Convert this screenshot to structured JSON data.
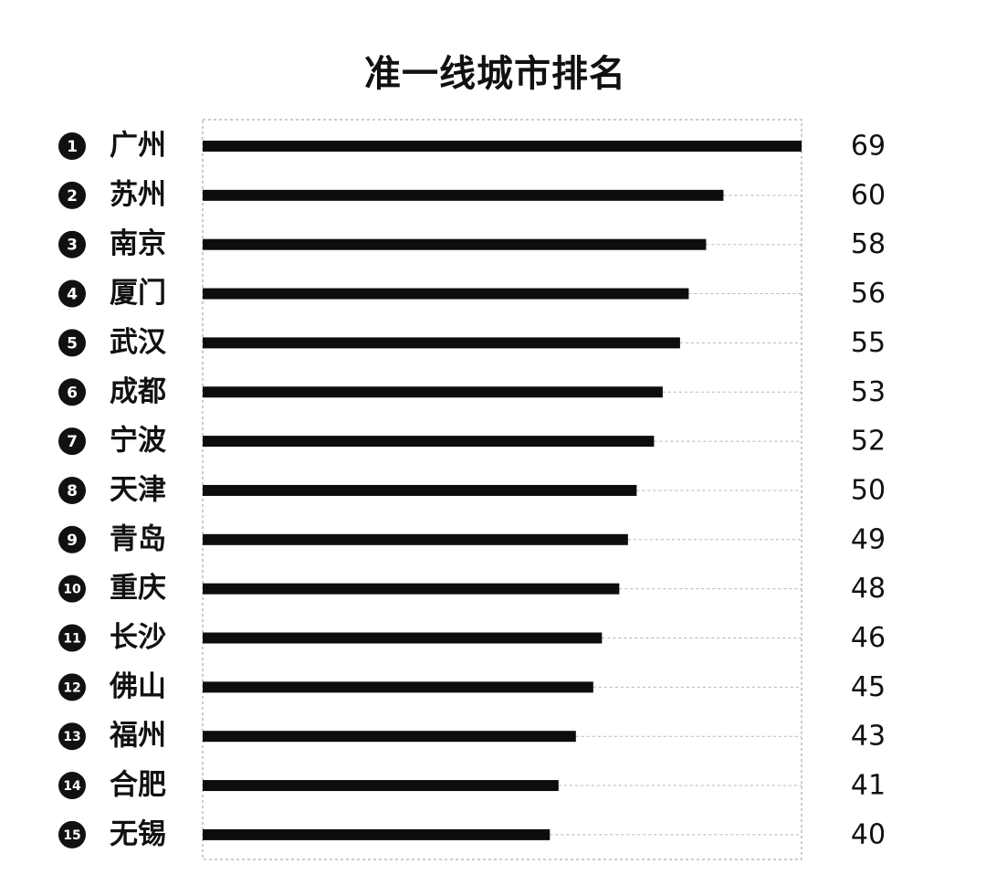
{
  "chart_data": {
    "type": "bar",
    "orientation": "horizontal",
    "title": "准一线城市排名",
    "xlabel": "",
    "ylabel": "",
    "xlim": [
      0,
      69
    ],
    "grid": false,
    "ranks": [
      "1",
      "2",
      "3",
      "4",
      "5",
      "6",
      "7",
      "8",
      "9",
      "10",
      "11",
      "12",
      "13",
      "14",
      "15"
    ],
    "categories": [
      "广州",
      "苏州",
      "南京",
      "厦门",
      "武汉",
      "成都",
      "宁波",
      "天津",
      "青岛",
      "重庆",
      "长沙",
      "佛山",
      "福州",
      "合肥",
      "无锡"
    ],
    "values": [
      69,
      60,
      58,
      56,
      55,
      53,
      52,
      50,
      49,
      48,
      46,
      45,
      43,
      41,
      40
    ],
    "value_labels": [
      "69",
      "60",
      "58",
      "56",
      "55",
      "53",
      "52",
      "50",
      "49",
      "48",
      "46",
      "45",
      "43",
      "41",
      "40"
    ],
    "colors": {
      "bar": "#0d0d0d",
      "badge": "#111111",
      "badge_text": "#ffffff",
      "guide": "#b5b5b5",
      "frame": "#9a9a9a"
    }
  }
}
